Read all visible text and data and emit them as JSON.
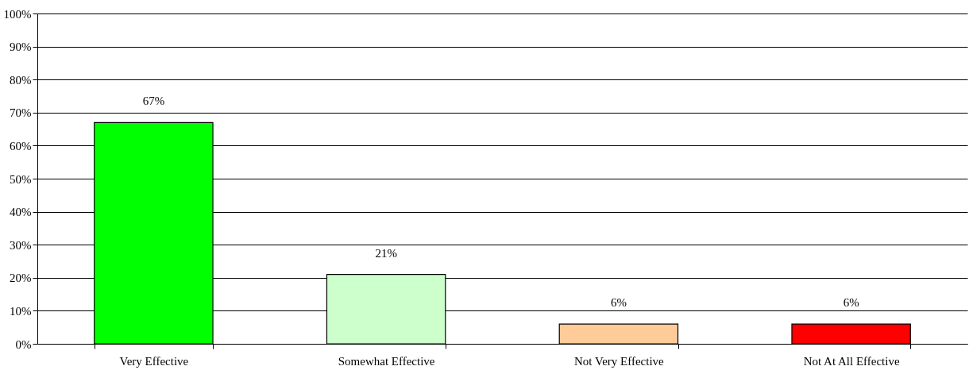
{
  "chart_data": {
    "type": "bar",
    "categories": [
      "Very Effective",
      "Somewhat Effective",
      "Not Very Effective",
      "Not At All Effective"
    ],
    "values": [
      67,
      21,
      6,
      6
    ],
    "colors": [
      "#00ff00",
      "#ccffcc",
      "#ffcc99",
      "#ff0000"
    ],
    "value_labels": [
      "67%",
      "21%",
      "6%",
      "6%"
    ],
    "ylim": [
      0,
      100
    ],
    "yticks": [
      {
        "value": 0,
        "label": "0%"
      },
      {
        "value": 10,
        "label": "10%"
      },
      {
        "value": 20,
        "label": "20%"
      },
      {
        "value": 30,
        "label": "30%"
      },
      {
        "value": 40,
        "label": "40%"
      },
      {
        "value": 50,
        "label": "50%"
      },
      {
        "value": 60,
        "label": "60%"
      },
      {
        "value": 70,
        "label": "70%"
      },
      {
        "value": 80,
        "label": "80%"
      },
      {
        "value": 90,
        "label": "90%"
      },
      {
        "value": 100,
        "label": "100%"
      }
    ],
    "grid": "y"
  }
}
